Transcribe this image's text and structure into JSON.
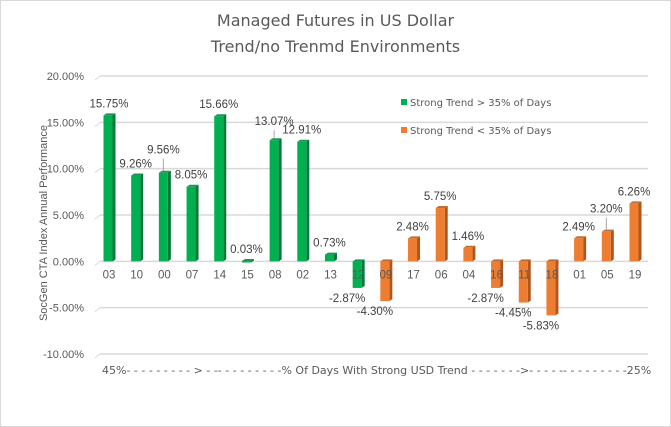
{
  "chart_data": {
    "type": "bar",
    "title": [
      "Managed Futures in US Dollar",
      "Trend/no Trenmd Environments"
    ],
    "ylabel": "SocGen CTA Index Annual Performance",
    "xlabel": "45%- - - - - - - - - > - -- - - - - - - - -% Of Days With Strong USD Trend - - - - - - ->- - - - -- - - - - - - - -25%",
    "ylim": [
      -10,
      20
    ],
    "yticks": [
      20,
      15,
      10,
      5,
      0,
      -5,
      -10
    ],
    "ytick_labels": [
      "20.00%",
      "15.00%",
      "10.00%",
      "5.00%",
      "0.00%",
      "-5.00%",
      "-10.00%"
    ],
    "grid": true,
    "legend_position": "top-right",
    "categories": [
      "03",
      "10",
      "00",
      "07",
      "14",
      "15",
      "08",
      "02",
      "13",
      "12",
      "09",
      "17",
      "06",
      "04",
      "16",
      "11",
      "18",
      "01",
      "05",
      "19"
    ],
    "values": [
      15.75,
      9.26,
      9.56,
      8.05,
      15.66,
      0.03,
      13.07,
      12.91,
      0.73,
      -2.87,
      -4.3,
      2.48,
      5.75,
      1.46,
      -2.87,
      -4.45,
      -5.83,
      2.49,
      3.2,
      6.26
    ],
    "value_labels": [
      "15.75%",
      "9.26%",
      "9.56%",
      "8.05%",
      "15.66%",
      "0.03%",
      "13.07%",
      "12.91%",
      "0.73%",
      "-2.87%",
      "-4.30%",
      "2.48%",
      "5.75%",
      "1.46%",
      "-2.87%",
      "-4.45%",
      "-5.83%",
      "2.49%",
      "3.20%",
      "6.26%"
    ],
    "series_index": [
      0,
      0,
      0,
      0,
      0,
      0,
      0,
      0,
      0,
      0,
      1,
      1,
      1,
      1,
      1,
      1,
      1,
      1,
      1,
      1
    ],
    "series": [
      {
        "name": "Strong Trend > 35% of Days",
        "color": "#00B050",
        "shade": "#007A38"
      },
      {
        "name": "Strong Trend < 35% of Days",
        "color": "#ED7D31",
        "shade": "#B0561C"
      }
    ]
  }
}
